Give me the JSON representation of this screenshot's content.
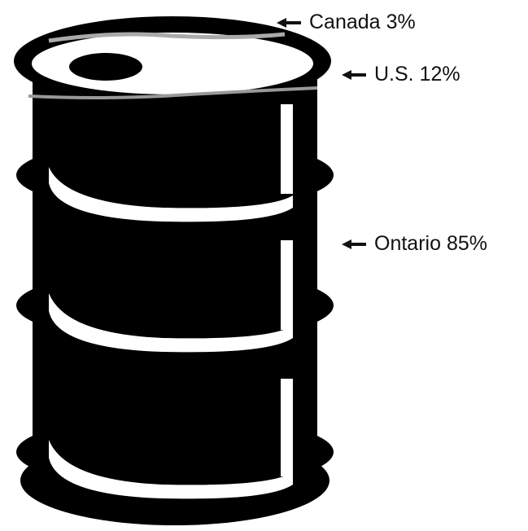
{
  "chart_data": {
    "type": "barrel",
    "categories": [
      "Canada",
      "U.S.",
      "Ontario"
    ],
    "values": [
      3,
      12,
      85
    ],
    "value_labels": [
      "3%",
      "12%",
      "85%"
    ]
  }
}
